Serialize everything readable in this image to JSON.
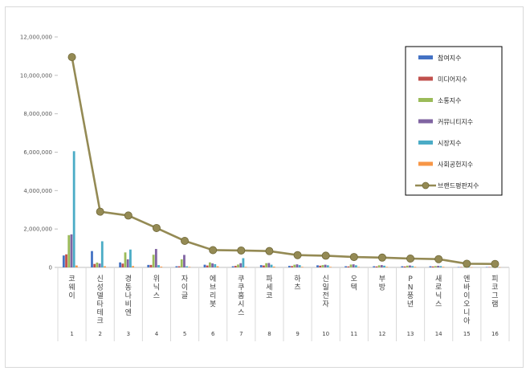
{
  "chart_data": {
    "type": "bar",
    "title": "",
    "xlabel": "",
    "ylabel": "",
    "ylim": [
      0,
      12000000
    ],
    "yticks": [
      0,
      2000000,
      4000000,
      6000000,
      8000000,
      10000000,
      12000000
    ],
    "ytick_labels": [
      "0",
      "2,000,000",
      "4,000,000",
      "6,000,000",
      "8,000,000",
      "10,000,000",
      "12,000,000"
    ],
    "grid": false,
    "legend_position": "top-right",
    "categories": [
      "코웨이",
      "신성델타테크",
      "경동나비엔",
      "위닉스",
      "자이글",
      "에브리봇",
      "쿠쿠홈시스",
      "파세코",
      "하츠",
      "신일전자",
      "오텍",
      "부방",
      "PN풍년",
      "새로닉스",
      "엔바이오니아",
      "피코그램"
    ],
    "ranks": [
      "1",
      "2",
      "3",
      "4",
      "5",
      "6",
      "7",
      "8",
      "9",
      "10",
      "11",
      "12",
      "13",
      "14",
      "15",
      "16"
    ],
    "series": [
      {
        "name": "참여지수",
        "color": "#4472c4",
        "values": [
          620000,
          850000,
          260000,
          130000,
          60000,
          140000,
          60000,
          120000,
          80000,
          110000,
          60000,
          60000,
          60000,
          60000,
          20000,
          20000
        ]
      },
      {
        "name": "미디어지수",
        "color": "#c0504d",
        "values": [
          680000,
          180000,
          200000,
          130000,
          60000,
          100000,
          80000,
          100000,
          70000,
          90000,
          50000,
          50000,
          50000,
          50000,
          20000,
          20000
        ]
      },
      {
        "name": "소통지수",
        "color": "#9bbb59",
        "values": [
          1680000,
          250000,
          780000,
          660000,
          420000,
          260000,
          150000,
          220000,
          140000,
          120000,
          150000,
          110000,
          90000,
          70000,
          20000,
          20000
        ]
      },
      {
        "name": "커뮤니티지수",
        "color": "#8064a2",
        "values": [
          1720000,
          200000,
          420000,
          960000,
          650000,
          210000,
          220000,
          230000,
          160000,
          140000,
          160000,
          120000,
          100000,
          80000,
          20000,
          20000
        ]
      },
      {
        "name": "시장지수",
        "color": "#4bacc6",
        "values": [
          6050000,
          1360000,
          930000,
          120000,
          60000,
          170000,
          480000,
          140000,
          120000,
          110000,
          110000,
          90000,
          70000,
          70000,
          20000,
          20000
        ]
      },
      {
        "name": "사회공헌지수",
        "color": "#f79646",
        "values": [
          100000,
          60000,
          70000,
          40000,
          30000,
          60000,
          30000,
          40000,
          30000,
          30000,
          30000,
          30000,
          30000,
          30000,
          10000,
          10000
        ]
      }
    ],
    "line": {
      "name": "브랜드평판지수",
      "color": "#948a54",
      "values": [
        10950000,
        2900000,
        2700000,
        2050000,
        1380000,
        900000,
        880000,
        850000,
        640000,
        610000,
        540000,
        510000,
        460000,
        430000,
        190000,
        180000
      ]
    }
  }
}
